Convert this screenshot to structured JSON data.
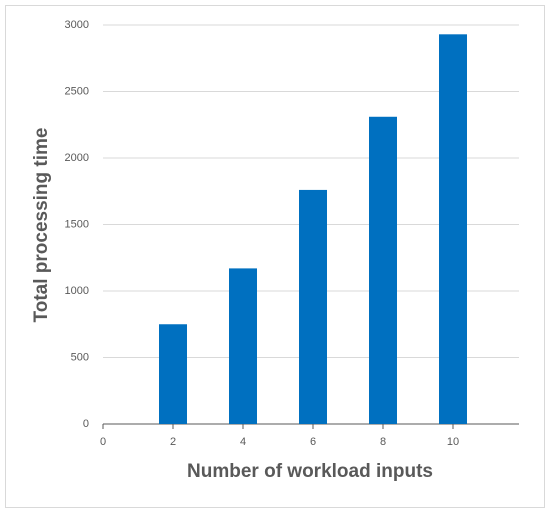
{
  "chart_data": {
    "type": "bar",
    "x_label": "Number of workload inputs",
    "y_label": "Total processing time",
    "x": [
      2,
      4,
      6,
      8,
      10
    ],
    "values": [
      750,
      1170,
      1760,
      2310,
      2930
    ],
    "color": "#0070c0",
    "xlim": [
      0,
      12
    ],
    "xticks": [
      0,
      2,
      4,
      6,
      8,
      10
    ],
    "ylim": [
      0,
      3000
    ],
    "yticks": [
      0,
      500,
      1000,
      1500,
      2000,
      2500,
      3000
    ],
    "grid": true
  }
}
